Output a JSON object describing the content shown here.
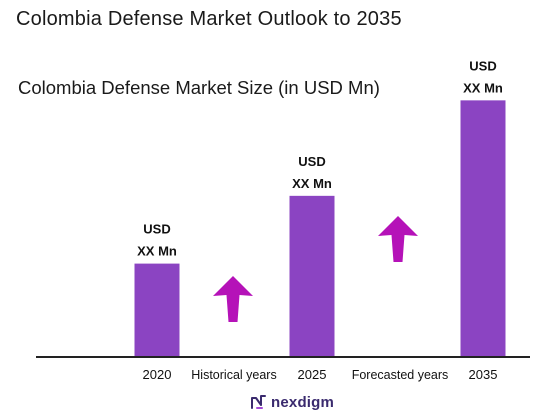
{
  "header": {
    "title": "Colombia Defense Market Outlook to 2035"
  },
  "chart_data": {
    "type": "bar",
    "title": "Colombia Defense Market Size (in USD Mn)",
    "categories": [
      "2020",
      "2025",
      "2035"
    ],
    "values": [
      30,
      52,
      83
    ],
    "value_labels": [
      [
        "USD",
        "XX Mn"
      ],
      [
        "USD",
        "XX Mn"
      ],
      [
        "USD",
        "XX Mn"
      ]
    ],
    "ylim": [
      0,
      100
    ],
    "period_labels": [
      "Historical years",
      "Forecasted years"
    ],
    "grid": false,
    "legend": "none",
    "colors": {
      "bar": "#8b44c2",
      "arrow": "#b512b8",
      "axis": "#222222"
    }
  },
  "brand": {
    "name": "nexdigm",
    "icon": "nexdigm-logo-icon"
  }
}
